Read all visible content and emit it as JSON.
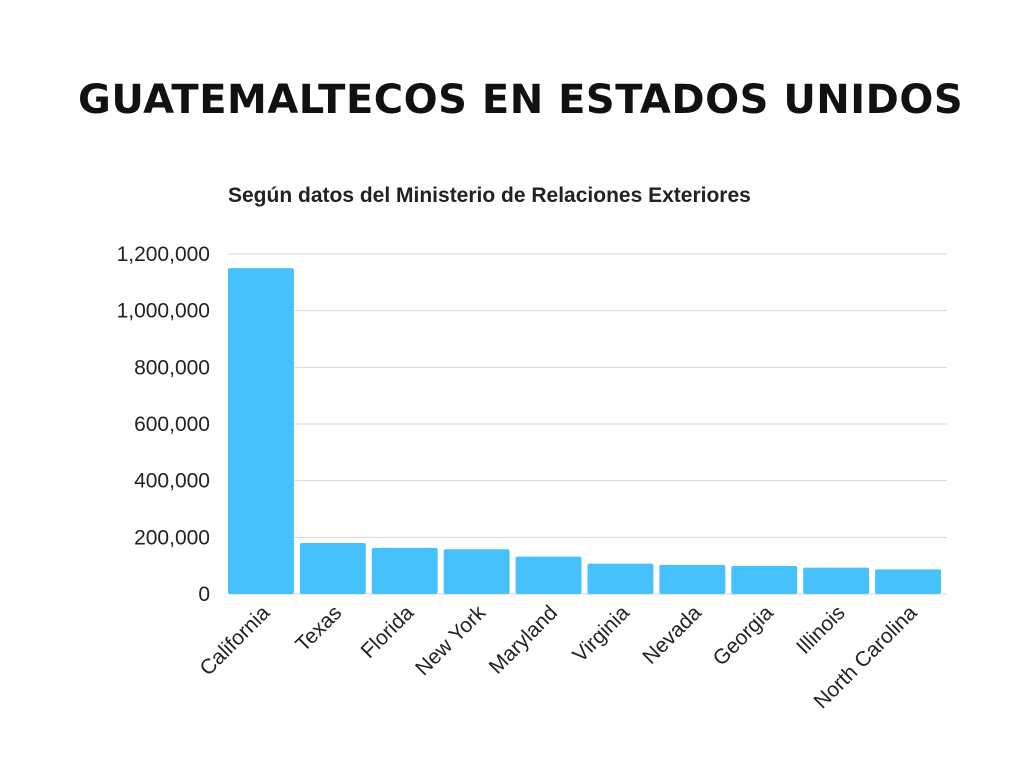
{
  "chart_data": {
    "type": "bar",
    "title": "GUATEMALTECOS EN ESTADOS UNIDOS",
    "subtitle": "Según datos del Ministerio de Relaciones Exteriores",
    "xlabel": "",
    "ylabel": "",
    "categories": [
      "California",
      "Texas",
      "Florida",
      "New York",
      "Maryland",
      "Virginia",
      "Nevada",
      "Georgia",
      "Illinois",
      "North Carolina"
    ],
    "values": [
      1150000,
      180000,
      163000,
      158000,
      132000,
      107000,
      103000,
      99000,
      93000,
      87000
    ],
    "ylim": [
      0,
      1200000
    ],
    "yticks": [
      0,
      200000,
      400000,
      600000,
      800000,
      1000000,
      1200000
    ],
    "ytick_labels": [
      "0",
      "200,000",
      "400,000",
      "600,000",
      "800,000",
      "1,000,000",
      "1,200,000"
    ],
    "grid": true,
    "legend": "none",
    "bar_color": "#47c1fb",
    "grid_color": "#d6d6d6"
  }
}
